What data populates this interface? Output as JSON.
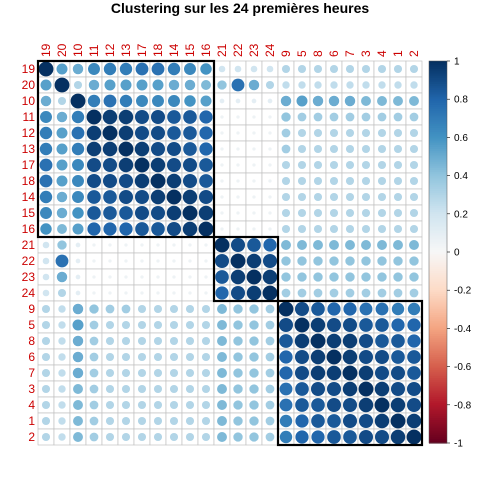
{
  "chart_data": {
    "type": "heatmap",
    "title": "Clustering sur les 24 premières heures",
    "labels": [
      "19",
      "20",
      "10",
      "11",
      "12",
      "13",
      "17",
      "18",
      "14",
      "15",
      "16",
      "21",
      "22",
      "23",
      "24",
      "9",
      "5",
      "8",
      "6",
      "7",
      "3",
      "4",
      "1",
      "2"
    ],
    "clusters": [
      [
        0,
        10
      ],
      [
        11,
        14
      ],
      [
        15,
        23
      ]
    ],
    "matrix": [
      [
        1.0,
        0.55,
        0.5,
        0.65,
        0.7,
        0.7,
        0.75,
        0.75,
        0.7,
        0.65,
        0.6,
        0.2,
        0.2,
        0.2,
        0.2,
        0.3,
        0.3,
        0.3,
        0.3,
        0.3,
        0.3,
        0.3,
        0.3,
        0.3
      ],
      [
        0.55,
        1.0,
        0.3,
        0.5,
        0.55,
        0.55,
        0.55,
        0.55,
        0.5,
        0.5,
        0.45,
        0.4,
        0.75,
        0.5,
        0.3,
        0.25,
        0.25,
        0.25,
        0.25,
        0.25,
        0.25,
        0.25,
        0.25,
        0.25
      ],
      [
        0.5,
        0.3,
        1.0,
        0.7,
        0.75,
        0.7,
        0.65,
        0.65,
        0.65,
        0.6,
        0.55,
        0.1,
        0.1,
        0.1,
        0.1,
        0.5,
        0.55,
        0.5,
        0.5,
        0.5,
        0.45,
        0.45,
        0.45,
        0.45
      ],
      [
        0.65,
        0.5,
        0.7,
        1.0,
        0.95,
        0.95,
        0.9,
        0.9,
        0.85,
        0.85,
        0.8,
        0.05,
        0.05,
        0.05,
        0.05,
        0.4,
        0.35,
        0.35,
        0.35,
        0.35,
        0.35,
        0.35,
        0.35,
        0.35
      ],
      [
        0.7,
        0.55,
        0.75,
        0.95,
        1.0,
        0.95,
        0.9,
        0.9,
        0.85,
        0.85,
        0.8,
        0.05,
        0.05,
        0.05,
        0.05,
        0.35,
        0.3,
        0.3,
        0.3,
        0.3,
        0.3,
        0.3,
        0.3,
        0.3
      ],
      [
        0.7,
        0.55,
        0.7,
        0.95,
        0.95,
        1.0,
        0.95,
        0.9,
        0.9,
        0.85,
        0.8,
        0.05,
        0.05,
        0.05,
        0.05,
        0.35,
        0.3,
        0.3,
        0.3,
        0.3,
        0.3,
        0.3,
        0.3,
        0.3
      ],
      [
        0.75,
        0.55,
        0.65,
        0.9,
        0.9,
        0.95,
        1.0,
        0.95,
        0.9,
        0.9,
        0.85,
        0.05,
        0.05,
        0.05,
        0.05,
        0.3,
        0.3,
        0.3,
        0.3,
        0.3,
        0.3,
        0.3,
        0.3,
        0.3
      ],
      [
        0.75,
        0.55,
        0.65,
        0.9,
        0.9,
        0.9,
        0.95,
        1.0,
        0.95,
        0.9,
        0.85,
        0.05,
        0.05,
        0.05,
        0.05,
        0.3,
        0.3,
        0.3,
        0.3,
        0.3,
        0.3,
        0.3,
        0.3,
        0.3
      ],
      [
        0.7,
        0.5,
        0.65,
        0.85,
        0.85,
        0.9,
        0.9,
        0.95,
        1.0,
        0.95,
        0.9,
        0.05,
        0.05,
        0.05,
        0.05,
        0.3,
        0.3,
        0.3,
        0.3,
        0.3,
        0.3,
        0.3,
        0.3,
        0.3
      ],
      [
        0.65,
        0.5,
        0.6,
        0.85,
        0.85,
        0.85,
        0.9,
        0.9,
        0.95,
        1.0,
        0.95,
        0.05,
        0.05,
        0.05,
        0.05,
        0.3,
        0.3,
        0.3,
        0.3,
        0.3,
        0.3,
        0.3,
        0.3,
        0.3
      ],
      [
        0.6,
        0.45,
        0.55,
        0.8,
        0.8,
        0.8,
        0.85,
        0.85,
        0.9,
        0.95,
        1.0,
        0.05,
        0.05,
        0.05,
        0.05,
        0.3,
        0.3,
        0.3,
        0.3,
        0.3,
        0.3,
        0.3,
        0.3,
        0.3
      ],
      [
        0.2,
        0.4,
        0.1,
        0.05,
        0.05,
        0.05,
        0.05,
        0.05,
        0.05,
        0.05,
        0.05,
        1.0,
        0.9,
        0.85,
        0.8,
        0.45,
        0.45,
        0.45,
        0.45,
        0.45,
        0.45,
        0.45,
        0.45,
        0.45
      ],
      [
        0.2,
        0.75,
        0.1,
        0.05,
        0.05,
        0.05,
        0.05,
        0.05,
        0.05,
        0.05,
        0.05,
        0.9,
        1.0,
        0.95,
        0.9,
        0.4,
        0.4,
        0.4,
        0.4,
        0.4,
        0.4,
        0.4,
        0.4,
        0.4
      ],
      [
        0.2,
        0.5,
        0.1,
        0.05,
        0.05,
        0.05,
        0.05,
        0.05,
        0.05,
        0.05,
        0.05,
        0.85,
        0.95,
        1.0,
        0.95,
        0.4,
        0.4,
        0.4,
        0.4,
        0.4,
        0.4,
        0.4,
        0.4,
        0.4
      ],
      [
        0.2,
        0.3,
        0.1,
        0.05,
        0.05,
        0.05,
        0.05,
        0.05,
        0.05,
        0.05,
        0.05,
        0.8,
        0.9,
        0.95,
        1.0,
        0.35,
        0.35,
        0.35,
        0.35,
        0.35,
        0.35,
        0.35,
        0.35,
        0.35
      ],
      [
        0.3,
        0.25,
        0.5,
        0.4,
        0.35,
        0.35,
        0.3,
        0.3,
        0.3,
        0.3,
        0.3,
        0.45,
        0.4,
        0.4,
        0.35,
        1.0,
        0.9,
        0.85,
        0.8,
        0.8,
        0.75,
        0.75,
        0.7,
        0.7
      ],
      [
        0.3,
        0.25,
        0.55,
        0.35,
        0.3,
        0.3,
        0.3,
        0.3,
        0.3,
        0.3,
        0.3,
        0.45,
        0.4,
        0.4,
        0.35,
        0.9,
        1.0,
        0.95,
        0.9,
        0.9,
        0.85,
        0.85,
        0.8,
        0.8
      ],
      [
        0.3,
        0.25,
        0.5,
        0.35,
        0.3,
        0.3,
        0.3,
        0.3,
        0.3,
        0.3,
        0.3,
        0.45,
        0.4,
        0.4,
        0.35,
        0.85,
        0.95,
        1.0,
        0.95,
        0.95,
        0.9,
        0.85,
        0.85,
        0.8
      ],
      [
        0.3,
        0.25,
        0.5,
        0.35,
        0.3,
        0.3,
        0.3,
        0.3,
        0.3,
        0.3,
        0.3,
        0.45,
        0.4,
        0.4,
        0.35,
        0.8,
        0.9,
        0.95,
        1.0,
        0.95,
        0.9,
        0.9,
        0.85,
        0.85
      ],
      [
        0.3,
        0.25,
        0.5,
        0.35,
        0.3,
        0.3,
        0.3,
        0.3,
        0.3,
        0.3,
        0.3,
        0.45,
        0.4,
        0.4,
        0.35,
        0.8,
        0.9,
        0.95,
        0.95,
        1.0,
        0.95,
        0.9,
        0.9,
        0.85
      ],
      [
        0.3,
        0.25,
        0.45,
        0.35,
        0.3,
        0.3,
        0.3,
        0.3,
        0.3,
        0.3,
        0.3,
        0.45,
        0.4,
        0.4,
        0.35,
        0.75,
        0.85,
        0.9,
        0.9,
        0.95,
        1.0,
        0.95,
        0.9,
        0.9
      ],
      [
        0.3,
        0.25,
        0.45,
        0.35,
        0.3,
        0.3,
        0.3,
        0.3,
        0.3,
        0.3,
        0.3,
        0.45,
        0.4,
        0.4,
        0.35,
        0.75,
        0.85,
        0.85,
        0.9,
        0.9,
        0.95,
        1.0,
        0.95,
        0.9
      ],
      [
        0.3,
        0.25,
        0.45,
        0.35,
        0.3,
        0.3,
        0.3,
        0.3,
        0.3,
        0.3,
        0.3,
        0.45,
        0.4,
        0.4,
        0.35,
        0.7,
        0.8,
        0.85,
        0.85,
        0.9,
        0.9,
        0.95,
        1.0,
        0.95
      ],
      [
        0.3,
        0.25,
        0.45,
        0.35,
        0.3,
        0.3,
        0.3,
        0.3,
        0.3,
        0.3,
        0.3,
        0.45,
        0.4,
        0.4,
        0.35,
        0.7,
        0.8,
        0.8,
        0.85,
        0.85,
        0.9,
        0.9,
        0.95,
        1.0
      ]
    ],
    "colorbar": {
      "ticks": [
        "1",
        "0.8",
        "0.6",
        "0.4",
        "0.2",
        "0",
        "-0.2",
        "-0.4",
        "-0.6",
        "-0.8",
        "-1"
      ],
      "range": [
        -1,
        1
      ]
    },
    "colors": {
      "negative": "#67001f",
      "neutral": "#f7f7f7",
      "positive": "#053061",
      "labels": "#cc0000",
      "grid": "#bbbbbb",
      "cluster_border": "#000000"
    },
    "grid": true,
    "legend_position": "right"
  }
}
